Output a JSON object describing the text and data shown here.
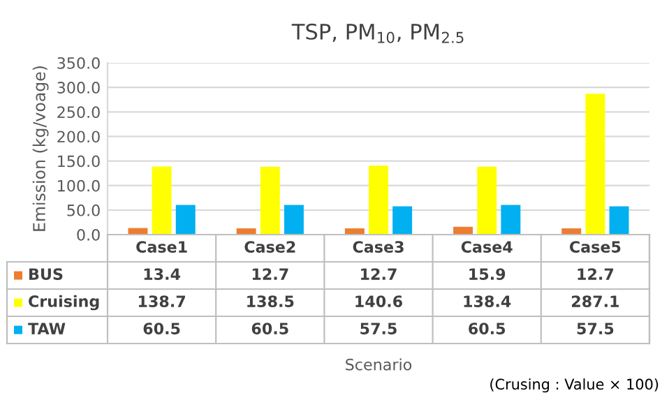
{
  "chart_data": {
    "type": "bar",
    "title": "TSP, PM$_{10}$, PM$_{2.5}$",
    "ylabel": "Emission (kg/voage)",
    "categories": [
      "Case1",
      "Case2",
      "Case3",
      "Case4",
      "Case5"
    ],
    "series": [
      {
        "name": "BUS",
        "color": "#ed7d31",
        "values": [
          13.4,
          12.7,
          12.7,
          15.9,
          12.7
        ]
      },
      {
        "name": "Cruising",
        "color": "#ffff00",
        "values": [
          138.7,
          138.5,
          140.6,
          138.4,
          287.1
        ]
      },
      {
        "name": "TAW",
        "color": "#00b0f0",
        "values": [
          60.5,
          60.5,
          57.5,
          60.5,
          57.5
        ]
      }
    ],
    "ylim": [
      0,
      350
    ],
    "yticks": [
      {
        "value": 0,
        "label": "0.0"
      },
      {
        "value": 50,
        "label": "50.0"
      },
      {
        "value": 100,
        "label": "100.0"
      },
      {
        "value": 150,
        "label": "150.0"
      },
      {
        "value": 200,
        "label": "200.0"
      },
      {
        "value": 250,
        "label": "250.0"
      },
      {
        "value": 300,
        "label": "300.0"
      },
      {
        "value": 350,
        "label": "350.0"
      }
    ],
    "grid": "y",
    "data_labels": true,
    "legend": "bottom left",
    "annotations": [
      "Scenario",
      "(Crusing : Value × 100)"
    ]
  }
}
